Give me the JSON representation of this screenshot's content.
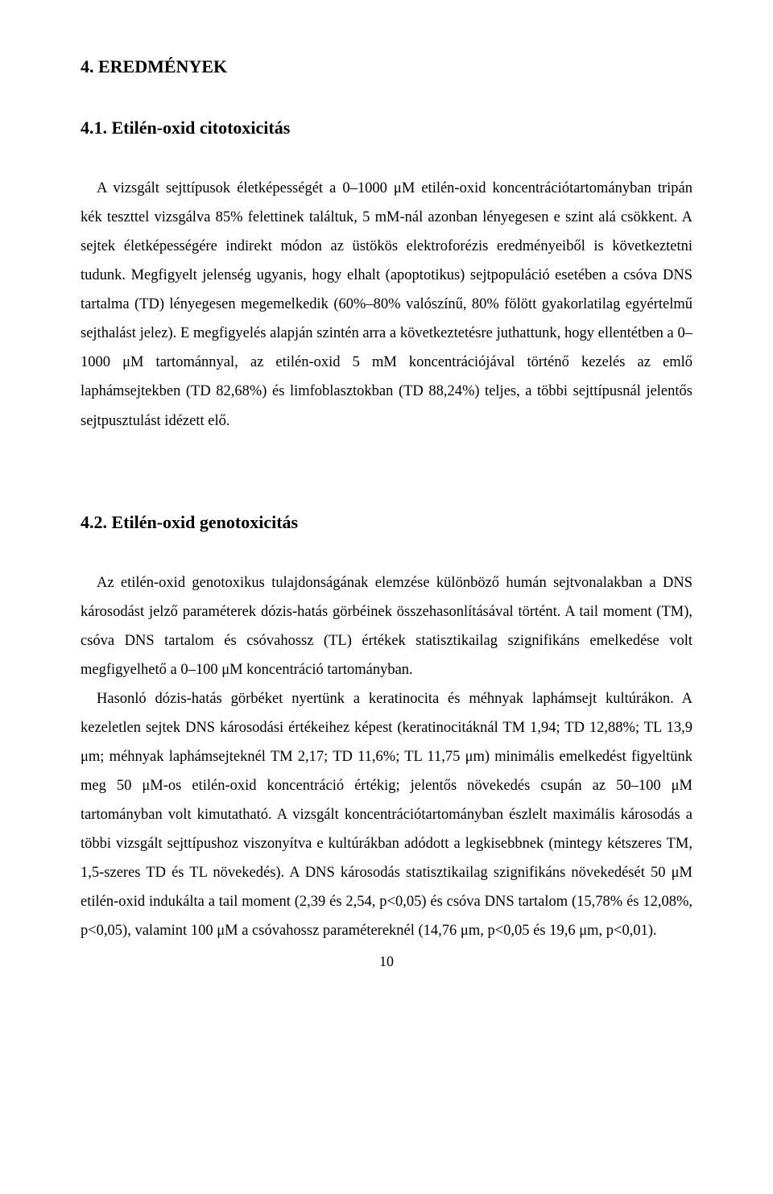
{
  "heading_main": "4. EREDMÉNYEK",
  "section41_heading": "4.1. Etilén-oxid citotoxicitás",
  "section41_body": "A vizsgált sejttípusok életképességét a 0–1000 μM etilén-oxid koncentrációtartományban tripán kék teszttel vizsgálva 85% felettinek találtuk, 5 mM-nál azonban lényegesen e szint alá csökkent. A sejtek életképességére indirekt módon az üstökös elektroforézis eredményeiből is következtetni tudunk. Megfigyelt jelenség ugyanis, hogy elhalt (apoptotikus) sejtpopuláció esetében a csóva DNS tartalma (TD) lényegesen megemelkedik (60%–80% valószínű, 80% fölött gyakorlatilag egyértelmű sejthalást jelez). E megfigyelés alapján szintén arra a következtetésre juthattunk, hogy ellentétben a 0–1000 μM tartománnyal, az etilén-oxid 5 mM koncentrációjával történő kezelés az emlő laphámsejtekben (TD 82,68%) és limfoblasztokban (TD 88,24%) teljes, a többi sejttípusnál jelentős sejtpusztulást idézett elő.",
  "section42_heading": "4.2. Etilén-oxid genotoxicitás",
  "section42_body1": "Az etilén-oxid genotoxikus tulajdonságának elemzése különböző humán sejtvonalakban a DNS károsodást jelző paraméterek dózis-hatás görbéinek összehasonlításával történt. A tail moment (TM), csóva DNS tartalom és csóvahossz (TL) értékek statisztikailag szignifikáns emelkedése volt megfigyelhető a 0–100 μM koncentráció tartományban.",
  "section42_body2": "Hasonló dózis-hatás görbéket nyertünk a keratinocita és méhnyak laphámsejt kultúrákon. A kezeletlen sejtek DNS károsodási értékeihez képest (keratinocitáknál TM 1,94; TD 12,88%; TL 13,9 μm; méhnyak laphámsejteknél TM 2,17; TD 11,6%; TL 11,75 μm) minimális emelkedést figyeltünk meg 50 μM-os etilén-oxid koncentráció értékig; jelentős növekedés csupán az 50–100 μM tartományban volt kimutatható. A vizsgált koncentrációtartományban észlelt maximális károsodás a többi vizsgált sejttípushoz viszonyítva e kultúrákban adódott a legkisebbnek (mintegy kétszeres TM, 1,5-szeres TD és TL növekedés). A DNS károsodás statisztikailag szignifikáns növekedését 50 μM etilén-oxid indukálta a tail moment (2,39 és 2,54, p<0,05) és csóva DNS tartalom (15,78% és 12,08%, p<0,05), valamint 100 μM a csóvahossz paramétereknél (14,76 μm, p<0,05 és 19,6 μm, p<0,01).",
  "page_number": "10"
}
